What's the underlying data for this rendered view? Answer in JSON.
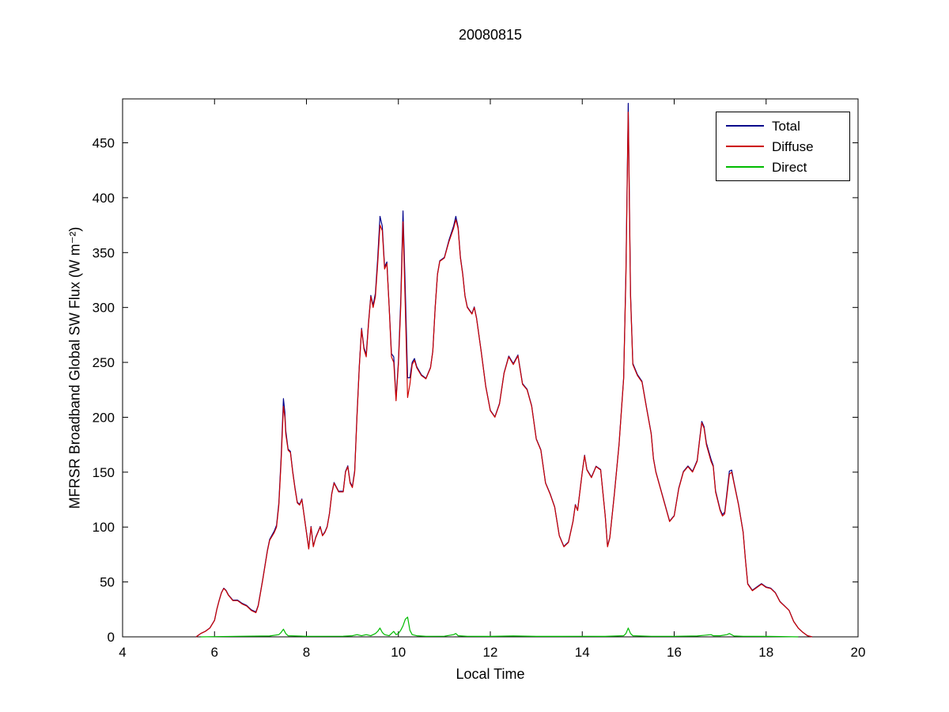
{
  "chart_data": {
    "type": "line",
    "title": "20080815",
    "xlabel": "Local Time",
    "ylabel": "MFRSR Broadband Global SW Flux (W m⁻²)",
    "xlim": [
      4,
      20
    ],
    "ylim": [
      0,
      490
    ],
    "xticks": [
      4,
      6,
      8,
      10,
      12,
      14,
      16,
      18,
      20
    ],
    "yticks": [
      0,
      50,
      100,
      150,
      200,
      250,
      300,
      350,
      400,
      450
    ],
    "grid": false,
    "legend_position": "top-right",
    "axis_color": "#000000",
    "background_color": "#ffffff",
    "series": [
      {
        "name": "Total",
        "color": "#00008B",
        "derived": "sum_of_diffuse_and_direct"
      },
      {
        "name": "Diffuse",
        "color": "#CC0000",
        "points": [
          [
            5.6,
            0
          ],
          [
            5.7,
            3
          ],
          [
            5.8,
            5
          ],
          [
            5.9,
            8
          ],
          [
            6.0,
            15
          ],
          [
            6.05,
            25
          ],
          [
            6.1,
            33
          ],
          [
            6.15,
            40
          ],
          [
            6.2,
            44
          ],
          [
            6.25,
            42
          ],
          [
            6.3,
            38
          ],
          [
            6.4,
            33
          ],
          [
            6.5,
            33
          ],
          [
            6.6,
            30
          ],
          [
            6.7,
            28
          ],
          [
            6.8,
            24
          ],
          [
            6.9,
            22
          ],
          [
            6.95,
            28
          ],
          [
            7.0,
            40
          ],
          [
            7.05,
            52
          ],
          [
            7.1,
            65
          ],
          [
            7.15,
            78
          ],
          [
            7.2,
            88
          ],
          [
            7.3,
            95
          ],
          [
            7.35,
            100
          ],
          [
            7.4,
            120
          ],
          [
            7.45,
            160
          ],
          [
            7.5,
            210
          ],
          [
            7.53,
            200
          ],
          [
            7.55,
            185
          ],
          [
            7.6,
            170
          ],
          [
            7.65,
            168
          ],
          [
            7.7,
            150
          ],
          [
            7.75,
            135
          ],
          [
            7.8,
            122
          ],
          [
            7.85,
            120
          ],
          [
            7.9,
            125
          ],
          [
            7.95,
            110
          ],
          [
            8.0,
            95
          ],
          [
            8.05,
            80
          ],
          [
            8.1,
            100
          ],
          [
            8.15,
            82
          ],
          [
            8.2,
            90
          ],
          [
            8.3,
            100
          ],
          [
            8.35,
            92
          ],
          [
            8.4,
            95
          ],
          [
            8.45,
            100
          ],
          [
            8.5,
            112
          ],
          [
            8.55,
            130
          ],
          [
            8.6,
            140
          ],
          [
            8.7,
            132
          ],
          [
            8.8,
            132
          ],
          [
            8.85,
            150
          ],
          [
            8.9,
            155
          ],
          [
            8.95,
            140
          ],
          [
            9.0,
            136
          ],
          [
            9.05,
            150
          ],
          [
            9.1,
            200
          ],
          [
            9.15,
            245
          ],
          [
            9.2,
            280
          ],
          [
            9.25,
            262
          ],
          [
            9.3,
            255
          ],
          [
            9.35,
            285
          ],
          [
            9.4,
            310
          ],
          [
            9.45,
            300
          ],
          [
            9.5,
            310
          ],
          [
            9.55,
            340
          ],
          [
            9.6,
            375
          ],
          [
            9.65,
            370
          ],
          [
            9.7,
            335
          ],
          [
            9.75,
            340
          ],
          [
            9.8,
            300
          ],
          [
            9.85,
            255
          ],
          [
            9.9,
            250
          ],
          [
            9.95,
            215
          ],
          [
            10.0,
            248
          ],
          [
            10.05,
            300
          ],
          [
            10.1,
            378
          ],
          [
            10.15,
            300
          ],
          [
            10.2,
            218
          ],
          [
            10.25,
            230
          ],
          [
            10.3,
            248
          ],
          [
            10.35,
            252
          ],
          [
            10.4,
            245
          ],
          [
            10.5,
            238
          ],
          [
            10.6,
            235
          ],
          [
            10.7,
            245
          ],
          [
            10.75,
            260
          ],
          [
            10.8,
            300
          ],
          [
            10.85,
            330
          ],
          [
            10.9,
            342
          ],
          [
            11.0,
            345
          ],
          [
            11.1,
            360
          ],
          [
            11.2,
            372
          ],
          [
            11.25,
            380
          ],
          [
            11.3,
            372
          ],
          [
            11.35,
            345
          ],
          [
            11.4,
            330
          ],
          [
            11.45,
            310
          ],
          [
            11.5,
            300
          ],
          [
            11.6,
            294
          ],
          [
            11.65,
            300
          ],
          [
            11.7,
            290
          ],
          [
            11.8,
            260
          ],
          [
            11.9,
            228
          ],
          [
            12.0,
            206
          ],
          [
            12.1,
            200
          ],
          [
            12.2,
            212
          ],
          [
            12.3,
            240
          ],
          [
            12.4,
            255
          ],
          [
            12.5,
            248
          ],
          [
            12.6,
            256
          ],
          [
            12.7,
            230
          ],
          [
            12.8,
            225
          ],
          [
            12.9,
            210
          ],
          [
            13.0,
            180
          ],
          [
            13.1,
            170
          ],
          [
            13.2,
            140
          ],
          [
            13.3,
            130
          ],
          [
            13.4,
            118
          ],
          [
            13.5,
            92
          ],
          [
            13.6,
            82
          ],
          [
            13.7,
            86
          ],
          [
            13.8,
            105
          ],
          [
            13.85,
            120
          ],
          [
            13.9,
            115
          ],
          [
            14.0,
            150
          ],
          [
            14.05,
            165
          ],
          [
            14.1,
            152
          ],
          [
            14.2,
            145
          ],
          [
            14.3,
            155
          ],
          [
            14.4,
            152
          ],
          [
            14.5,
            110
          ],
          [
            14.55,
            82
          ],
          [
            14.6,
            90
          ],
          [
            14.7,
            130
          ],
          [
            14.8,
            175
          ],
          [
            14.9,
            235
          ],
          [
            14.95,
            330
          ],
          [
            15.0,
            478
          ],
          [
            15.05,
            310
          ],
          [
            15.1,
            248
          ],
          [
            15.2,
            238
          ],
          [
            15.3,
            232
          ],
          [
            15.4,
            208
          ],
          [
            15.5,
            185
          ],
          [
            15.55,
            162
          ],
          [
            15.6,
            150
          ],
          [
            15.7,
            135
          ],
          [
            15.8,
            120
          ],
          [
            15.9,
            105
          ],
          [
            16.0,
            110
          ],
          [
            16.1,
            135
          ],
          [
            16.2,
            150
          ],
          [
            16.3,
            155
          ],
          [
            16.4,
            150
          ],
          [
            16.5,
            160
          ],
          [
            16.55,
            178
          ],
          [
            16.6,
            195
          ],
          [
            16.65,
            190
          ],
          [
            16.7,
            175
          ],
          [
            16.8,
            160
          ],
          [
            16.85,
            155
          ],
          [
            16.9,
            132
          ],
          [
            17.0,
            115
          ],
          [
            17.05,
            110
          ],
          [
            17.1,
            112
          ],
          [
            17.2,
            148
          ],
          [
            17.25,
            150
          ],
          [
            17.3,
            140
          ],
          [
            17.4,
            120
          ],
          [
            17.5,
            95
          ],
          [
            17.55,
            70
          ],
          [
            17.6,
            48
          ],
          [
            17.7,
            42
          ],
          [
            17.8,
            45
          ],
          [
            17.9,
            48
          ],
          [
            18.0,
            45
          ],
          [
            18.1,
            44
          ],
          [
            18.2,
            40
          ],
          [
            18.3,
            32
          ],
          [
            18.4,
            28
          ],
          [
            18.5,
            24
          ],
          [
            18.6,
            14
          ],
          [
            18.7,
            8
          ],
          [
            18.8,
            4
          ],
          [
            18.9,
            1
          ],
          [
            19.0,
            0
          ]
        ]
      },
      {
        "name": "Direct",
        "color": "#00BB00",
        "points": [
          [
            5.7,
            0
          ],
          [
            6.5,
            0.5
          ],
          [
            7.2,
            0.8
          ],
          [
            7.4,
            2
          ],
          [
            7.45,
            4
          ],
          [
            7.5,
            7
          ],
          [
            7.55,
            3
          ],
          [
            7.6,
            1
          ],
          [
            8.0,
            0.5
          ],
          [
            8.8,
            0.6
          ],
          [
            9.0,
            1
          ],
          [
            9.1,
            2
          ],
          [
            9.2,
            1
          ],
          [
            9.3,
            2
          ],
          [
            9.4,
            1
          ],
          [
            9.5,
            3
          ],
          [
            9.55,
            5
          ],
          [
            9.6,
            8
          ],
          [
            9.65,
            4
          ],
          [
            9.7,
            2
          ],
          [
            9.8,
            1
          ],
          [
            9.85,
            3
          ],
          [
            9.9,
            5
          ],
          [
            9.95,
            2
          ],
          [
            10.0,
            3
          ],
          [
            10.05,
            6
          ],
          [
            10.1,
            10
          ],
          [
            10.15,
            16
          ],
          [
            10.2,
            18
          ],
          [
            10.25,
            6
          ],
          [
            10.3,
            2
          ],
          [
            10.4,
            1
          ],
          [
            10.6,
            0.5
          ],
          [
            11.0,
            0.6
          ],
          [
            11.2,
            2
          ],
          [
            11.25,
            3
          ],
          [
            11.3,
            1
          ],
          [
            11.5,
            0.5
          ],
          [
            12.0,
            0.4
          ],
          [
            12.5,
            0.8
          ],
          [
            13.0,
            0.4
          ],
          [
            13.5,
            0.4
          ],
          [
            14.0,
            0.5
          ],
          [
            14.5,
            0.4
          ],
          [
            14.9,
            1
          ],
          [
            14.95,
            3
          ],
          [
            15.0,
            8
          ],
          [
            15.05,
            3
          ],
          [
            15.1,
            1
          ],
          [
            15.5,
            0.5
          ],
          [
            16.0,
            0.5
          ],
          [
            16.5,
            0.8
          ],
          [
            16.8,
            2
          ],
          [
            16.85,
            1
          ],
          [
            17.0,
            1
          ],
          [
            17.15,
            2
          ],
          [
            17.2,
            3
          ],
          [
            17.3,
            0.8
          ],
          [
            17.5,
            0.5
          ],
          [
            18.0,
            0.4
          ],
          [
            18.3,
            0.3
          ],
          [
            18.7,
            0
          ]
        ]
      }
    ],
    "legend": {
      "items": [
        "Total",
        "Diffuse",
        "Direct"
      ]
    }
  }
}
